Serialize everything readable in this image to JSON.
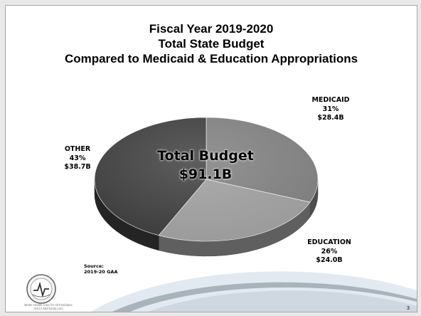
{
  "slide": {
    "title_lines": [
      "Fiscal Year 2019-2020",
      "Total State Budget",
      "Compared to Medicaid & Education Appropriations"
    ],
    "page_number": "3",
    "source_lines": [
      "Source:",
      "2019-20 GAA"
    ],
    "footer_lines": [
      "Better Health Care for All Floridians",
      "AHCA.MyFlorida.com"
    ]
  },
  "chart_data": {
    "type": "pie",
    "center_label": [
      "Total Budget",
      "$91.1B"
    ],
    "slices": [
      {
        "name": "MEDICAID",
        "percent": 31,
        "percent_label": "31%",
        "amount": 28.4,
        "amount_label": "$28.4B",
        "color": "#7c7c7c"
      },
      {
        "name": "EDUCATION",
        "percent": 26,
        "percent_label": "26%",
        "amount": 24.0,
        "amount_label": "$24.0B",
        "color": "#9a9a9a"
      },
      {
        "name": "OTHER",
        "percent": 43,
        "percent_label": "43%",
        "amount": 38.7,
        "amount_label": "$38.7B",
        "color": "#3a3a3a"
      }
    ]
  },
  "colors": {
    "background": "#ffffff",
    "slide_border": "#a8a8a8",
    "swoosh_light": "#dfe7ef",
    "swoosh_dark": "#9aa4ae"
  }
}
